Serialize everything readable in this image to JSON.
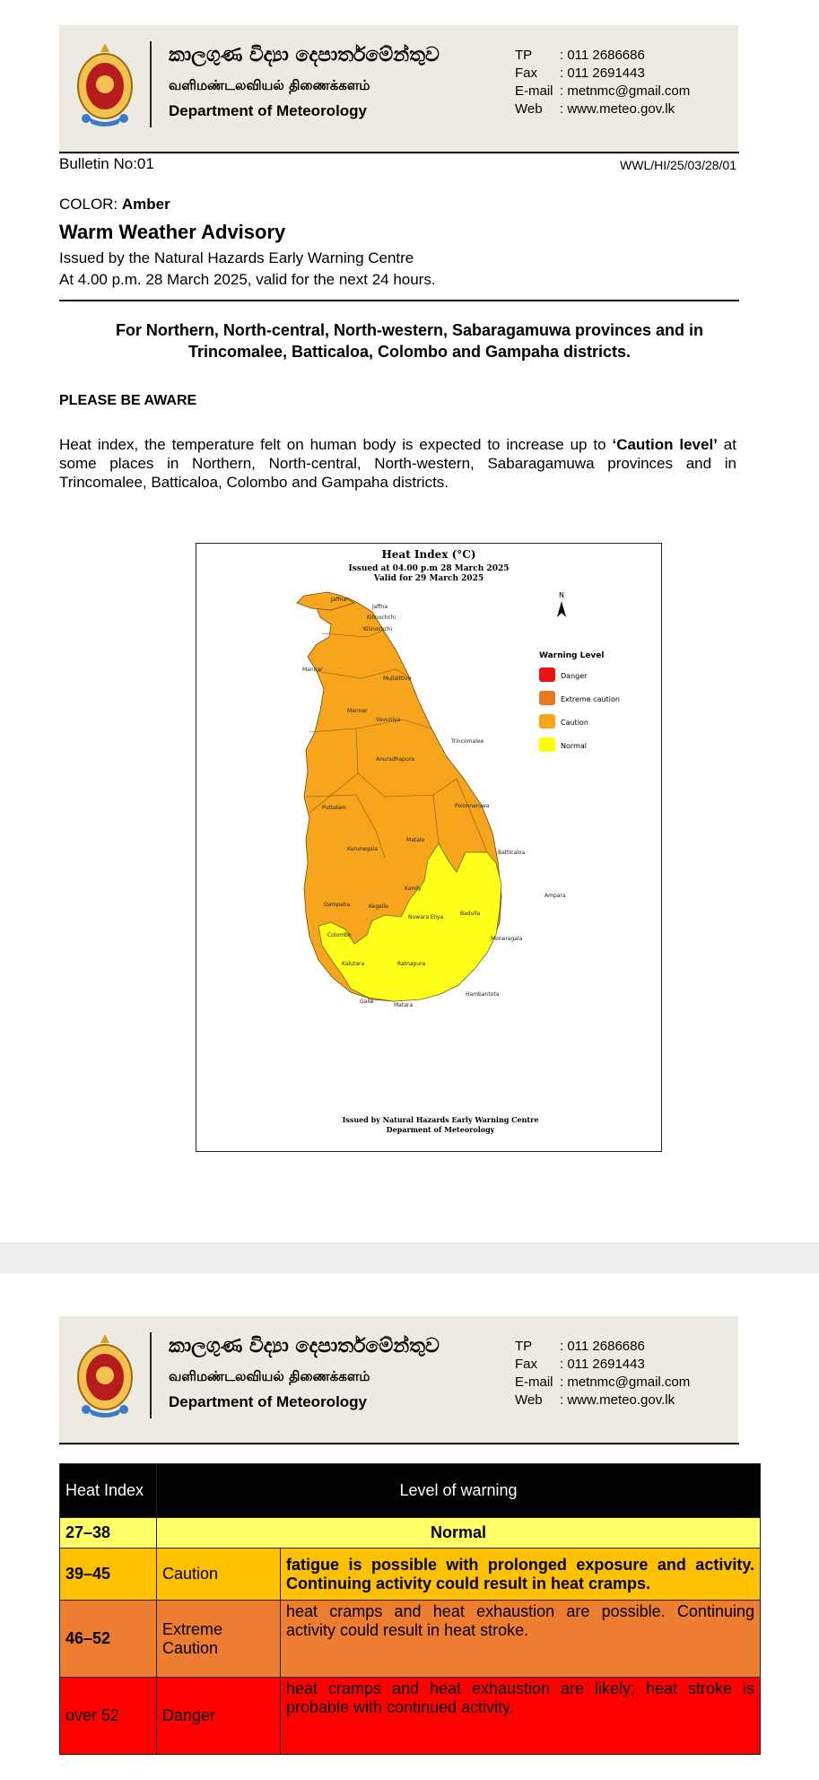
{
  "letterhead": {
    "sinhala_name": "කාලගුණ විද්‍යා දෙපාර්තමේන්තුව",
    "tamil_name": "வளிமண்டலவியல் திணைக்களம்",
    "english_name": "Department of Meteorology",
    "contacts": [
      {
        "label": "TP",
        "value": ": 011 2686686"
      },
      {
        "label": "Fax",
        "value": ": 011 2691443"
      },
      {
        "label": "E-mail",
        "value": ": metnmc@gmail.com"
      },
      {
        "label": "Web",
        "value": ": www.meteo.gov.lk"
      }
    ]
  },
  "bulletin": {
    "number": "Bulletin No:01",
    "reference": "WWL/HI/25/03/28/01",
    "color_label": "COLOR: ",
    "color_value": "Amber",
    "title": "Warm Weather Advisory",
    "issued_by": "Issued by the Natural Hazards Early Warning Centre",
    "issued_at": "At 4.00 p.m. 28 March 2025, valid for the next 24 hours.",
    "regions_line1": "For Northern, North-central, North-western, Sabaragamuwa provinces and in",
    "regions_line2": "Trincomalee, Batticaloa, Colombo and Gampaha districts.",
    "aware_heading": "PLEASE BE AWARE",
    "message_pre": "Heat index, the temperature felt on human body is expected to increase up to ",
    "message_bold": "‘Caution level’",
    "message_post": " at some places in Northern, North-central, North-western, Sabaragamuwa provinces and in Trincomalee, Batticaloa, Colombo and Gampaha districts."
  },
  "map": {
    "title": "Heat Index (°C)",
    "issued": "Issued at 04.00 p.m 28 March 2025",
    "valid": "Valid for 29 March 2025",
    "north": "N",
    "legend_title": "Warning Level",
    "legend": [
      {
        "label": "Danger",
        "color": "#ee1111"
      },
      {
        "label": "Extreme caution",
        "color": "#e8791c"
      },
      {
        "label": "Caution",
        "color": "#f7a51c"
      },
      {
        "label": "Normal",
        "color": "#ffff00"
      }
    ],
    "districts": [
      "Jaffna",
      "Jaffna",
      "Kilinochchi",
      "Kilinochchi",
      "Mannar",
      "Mullaittivu",
      "Mannar",
      "Vavuniya",
      "Trincomalee",
      "Anuradhapura",
      "Polonnaruwa",
      "Puttalam",
      "Matale",
      "Batticaloa",
      "Kurunegala",
      "Kandy",
      "Ampara",
      "Gampaha",
      "Kegalle",
      "Nuwara Eliya",
      "Badulla",
      "Colombo",
      "Moneragala",
      "Kalutara",
      "Ratnapura",
      "Hambantota",
      "Galle",
      "Matara"
    ],
    "footer1": "Issued by Natural Hazards Early Warning Centre",
    "footer2": "Deparment of Meteorology"
  },
  "warning_table": {
    "header_col1": "Heat Index",
    "header_col2": "Level of warning",
    "rows": [
      {
        "range": "27–38",
        "level": "Normal",
        "description": "",
        "color": "#ffff66"
      },
      {
        "range": "39–45",
        "level": "Caution",
        "description": "fatigue is possible with prolonged exposure and activity. Continuing activity could result in heat cramps.",
        "color": "#ffc000"
      },
      {
        "range": "46–52",
        "level": "Extreme Caution",
        "description": "heat cramps and heat exhaustion are possible. Continuing activity could result in heat stroke.",
        "color": "#ed7d31"
      },
      {
        "range": "over 52",
        "level": "Danger",
        "description": "heat cramps and heat exhaustion are likely; heat stroke is probable with continued activity.",
        "color": "#ff0000"
      }
    ]
  }
}
